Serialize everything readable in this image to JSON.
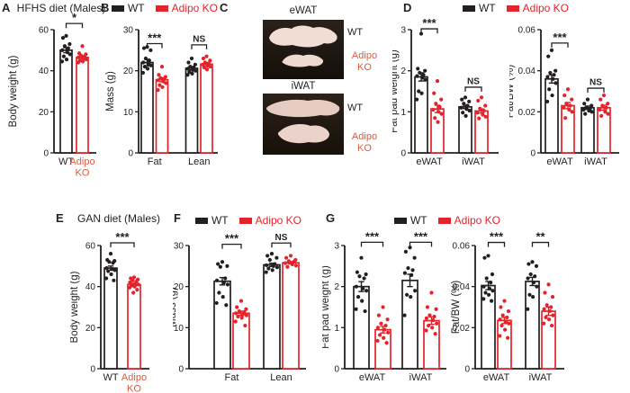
{
  "figure": {
    "panels": {
      "a": "A",
      "b": "B",
      "c": "C",
      "d": "D",
      "e": "E",
      "f": "F",
      "g": "G"
    },
    "legend": {
      "wt": "WT",
      "ko": "Adipo KO"
    },
    "colors": {
      "wt": "#231f20",
      "ko": "#e4232b",
      "ko_label": "#dd5b3c"
    },
    "panel_c": {
      "photos": [
        {
          "title": "eWAT",
          "wt_label": "WT",
          "ko_line1": "Adipo",
          "ko_line2": "KO"
        },
        {
          "title": "iWAT",
          "wt_label": "WT",
          "ko_line1": "Adipo",
          "ko_line2": "KO"
        }
      ]
    }
  },
  "chart_data": [
    {
      "id": "A",
      "type": "bar",
      "title": "HFHS diet (Males)",
      "ylabel": "Body weight (g)",
      "ylim": [
        0,
        60
      ],
      "yticks": [
        {
          "v": 0,
          "t": "0"
        },
        {
          "v": 20,
          "t": "20"
        },
        {
          "v": 40,
          "t": "40"
        },
        {
          "v": 60,
          "t": "60"
        }
      ],
      "groups": [
        {
          "category_lines": [
            "WT"
          ],
          "cat_color": "wt",
          "bars": [
            {
              "series": "WT",
              "mean": 50,
              "sem": 1.2,
              "points": [
                57,
                56,
                53,
                52,
                51,
                50,
                49,
                48,
                47,
                45.5,
                44.5
              ]
            }
          ]
        },
        {
          "category_lines": [
            "Adipo",
            "KO"
          ],
          "cat_color": "ko_label",
          "bars": [
            {
              "series": "Adipo KO",
              "mean": 46.5,
              "sem": 0.7,
              "points": [
                52,
                48.5,
                48,
                47.5,
                47,
                46.5,
                46,
                45.5,
                45,
                44.5,
                44
              ]
            }
          ]
        }
      ],
      "comparisons": [
        {
          "bar_a": 0,
          "bar_b": 1,
          "label": "*",
          "y": 63
        }
      ]
    },
    {
      "id": "B",
      "type": "bar",
      "title": "",
      "ylabel": "Mass (g)",
      "ylim": [
        0,
        30
      ],
      "yticks": [
        {
          "v": 0,
          "t": "0"
        },
        {
          "v": 10,
          "t": "10"
        },
        {
          "v": 20,
          "t": "20"
        },
        {
          "v": 30,
          "t": "30"
        }
      ],
      "groups": [
        {
          "category_lines": [
            "Fat"
          ],
          "cat_color": "wt",
          "bars": [
            {
              "series": "WT",
              "mean": 22,
              "sem": 0.8,
              "points": [
                25.8,
                25.5,
                25,
                23,
                22.5,
                22,
                21.7,
                21.3,
                21,
                20.5,
                19.5
              ]
            },
            {
              "series": "Adipo KO",
              "mean": 17.8,
              "sem": 0.5,
              "points": [
                21,
                19,
                18.5,
                18.2,
                18,
                17.7,
                17.4,
                17,
                16.5,
                16,
                15.3
              ]
            }
          ]
        },
        {
          "category_lines": [
            "Lean"
          ],
          "cat_color": "wt",
          "bars": [
            {
              "series": "WT",
              "mean": 20.6,
              "sem": 0.4,
              "points": [
                23,
                22,
                21.5,
                21,
                20.8,
                20.5,
                20.2,
                20,
                19.7,
                19.3,
                19
              ]
            },
            {
              "series": "Adipo KO",
              "mean": 21.6,
              "sem": 0.4,
              "points": [
                23.5,
                23,
                22.5,
                22,
                21.8,
                21.5,
                21.2,
                21,
                20.8,
                20.3
              ]
            }
          ]
        }
      ],
      "comparisons": [
        {
          "bar_a": 0,
          "bar_b": 1,
          "label": "***",
          "y": 26.6
        },
        {
          "bar_a": 2,
          "bar_b": 3,
          "label": "NS",
          "y": 26.3
        }
      ]
    },
    {
      "id": "D-left",
      "type": "bar",
      "title": "",
      "ylabel": "Fat pad weight (g)",
      "ylim": [
        0,
        3
      ],
      "yticks": [
        {
          "v": 0,
          "t": "0"
        },
        {
          "v": 1,
          "t": "1"
        },
        {
          "v": 2,
          "t": "2"
        },
        {
          "v": 3,
          "t": "3"
        }
      ],
      "groups": [
        {
          "category_lines": [
            "eWAT"
          ],
          "cat_color": "wt",
          "bars": [
            {
              "series": "WT",
              "mean": 1.85,
              "sem": 0.1,
              "points": [
                2.9,
                2.05,
                2.0,
                1.95,
                1.9,
                1.87,
                1.83,
                1.78,
                1.5,
                1.45,
                1.3
              ]
            },
            {
              "series": "Adipo KO",
              "mean": 1.07,
              "sem": 0.09,
              "points": [
                1.75,
                1.45,
                1.3,
                1.2,
                1.12,
                1.05,
                1.0,
                0.95,
                0.85,
                0.75
              ]
            }
          ]
        },
        {
          "category_lines": [
            "iWAT"
          ],
          "cat_color": "wt",
          "bars": [
            {
              "series": "WT",
              "mean": 1.12,
              "sem": 0.04,
              "points": [
                1.35,
                1.3,
                1.25,
                1.2,
                1.15,
                1.1,
                1.07,
                1.03,
                0.98,
                0.9
              ]
            },
            {
              "series": "Adipo KO",
              "mean": 1.02,
              "sem": 0.05,
              "points": [
                1.35,
                1.27,
                1.15,
                1.08,
                1.03,
                0.98,
                0.93,
                0.88,
                0.84
              ]
            }
          ]
        }
      ],
      "comparisons": [
        {
          "bar_a": 0,
          "bar_b": 1,
          "label": "***",
          "y": 3.02
        },
        {
          "bar_a": 2,
          "bar_b": 3,
          "label": "NS",
          "y": 1.6
        }
      ]
    },
    {
      "id": "D-right",
      "type": "bar",
      "title": "",
      "ylabel": "Fat/BW (%)",
      "ylim": [
        0,
        0.06
      ],
      "yticks": [
        {
          "v": 0,
          "t": "0"
        },
        {
          "v": 0.02,
          "t": "0.02"
        },
        {
          "v": 0.04,
          "t": "0.04"
        },
        {
          "v": 0.06,
          "t": "0.06"
        }
      ],
      "groups": [
        {
          "category_lines": [
            "eWAT"
          ],
          "cat_color": "wt",
          "bars": [
            {
              "series": "WT",
              "mean": 0.036,
              "sem": 0.002,
              "points": [
                0.05,
                0.047,
                0.04,
                0.039,
                0.038,
                0.037,
                0.036,
                0.034,
                0.031,
                0.028,
                0.025
              ]
            },
            {
              "series": "Adipo KO",
              "mean": 0.023,
              "sem": 0.0015,
              "points": [
                0.031,
                0.028,
                0.026,
                0.024,
                0.023,
                0.022,
                0.021,
                0.02,
                0.017
              ]
            }
          ]
        },
        {
          "category_lines": [
            "iWAT"
          ],
          "cat_color": "wt",
          "bars": [
            {
              "series": "WT",
              "mean": 0.022,
              "sem": 0.0008,
              "points": [
                0.026,
                0.024,
                0.023,
                0.022,
                0.0215,
                0.021,
                0.0205,
                0.02,
                0.019
              ]
            },
            {
              "series": "Adipo KO",
              "mean": 0.022,
              "sem": 0.0012,
              "points": [
                0.028,
                0.026,
                0.024,
                0.023,
                0.022,
                0.021,
                0.02,
                0.019,
                0.018
              ]
            }
          ]
        }
      ],
      "comparisons": [
        {
          "bar_a": 0,
          "bar_b": 1,
          "label": "***",
          "y": 0.0535
        },
        {
          "bar_a": 2,
          "bar_b": 3,
          "label": "NS",
          "y": 0.0315
        }
      ]
    },
    {
      "id": "E",
      "type": "bar",
      "title": "GAN diet (Males)",
      "ylabel": "Body weight (g)",
      "ylim": [
        0,
        60
      ],
      "yticks": [
        {
          "v": 0,
          "t": "0"
        },
        {
          "v": 20,
          "t": "20"
        },
        {
          "v": 40,
          "t": "40"
        },
        {
          "v": 60,
          "t": "60"
        }
      ],
      "groups": [
        {
          "category_lines": [
            "WT"
          ],
          "cat_color": "wt",
          "bars": [
            {
              "series": "WT",
              "mean": 49,
              "sem": 1.0,
              "points": [
                56,
                53,
                52.5,
                52,
                51.5,
                49,
                48.5,
                48,
                47.5,
                46,
                44,
                43
              ]
            }
          ]
        },
        {
          "category_lines": [
            "Adipo",
            "KO"
          ],
          "cat_color": "ko_label",
          "bars": [
            {
              "series": "Adipo KO",
              "mean": 41,
              "sem": 0.6,
              "points": [
                44.5,
                44,
                43.5,
                43,
                42.5,
                42,
                41.5,
                41,
                40.5,
                40,
                39.5,
                38.5,
                37
              ]
            }
          ]
        }
      ],
      "comparisons": [
        {
          "bar_a": 0,
          "bar_b": 1,
          "label": "***",
          "y": 61.3
        }
      ]
    },
    {
      "id": "F",
      "type": "bar",
      "title": "",
      "ylabel": "Mass (g)",
      "ylim": [
        0,
        30
      ],
      "yticks": [
        {
          "v": 0,
          "t": "0"
        },
        {
          "v": 10,
          "t": "10"
        },
        {
          "v": 20,
          "t": "20"
        },
        {
          "v": 30,
          "t": "30"
        }
      ],
      "groups": [
        {
          "category_lines": [
            "Fat"
          ],
          "cat_color": "wt",
          "bars": [
            {
              "series": "WT",
              "mean": 21.3,
              "sem": 0.9,
              "points": [
                26,
                25.5,
                25,
                24.8,
                22,
                21.5,
                21,
                20.5,
                18.5,
                17.5,
                16,
                15.5
              ]
            },
            {
              "series": "Adipo KO",
              "mean": 13.5,
              "sem": 0.5,
              "points": [
                16.5,
                15,
                14.5,
                14,
                13.8,
                13.5,
                13.2,
                13,
                12.7,
                12.4,
                11.5,
                10.5
              ]
            }
          ]
        },
        {
          "category_lines": [
            "Lean"
          ],
          "cat_color": "wt",
          "bars": [
            {
              "series": "WT",
              "mean": 25.3,
              "sem": 0.4,
              "points": [
                28,
                27.5,
                27,
                26.5,
                25.5,
                25.2,
                25,
                24.7,
                24.4,
                24,
                23.5
              ]
            },
            {
              "series": "Adipo KO",
              "mean": 25.8,
              "sem": 0.3,
              "points": [
                27.5,
                27,
                26.5,
                26.2,
                26,
                25.7,
                25.4,
                25.1,
                24.8
              ]
            }
          ]
        }
      ],
      "comparisons": [
        {
          "bar_a": 0,
          "bar_b": 1,
          "label": "***",
          "y": 30.3
        },
        {
          "bar_a": 2,
          "bar_b": 3,
          "label": "NS",
          "y": 30.6
        }
      ]
    },
    {
      "id": "G-left",
      "type": "bar",
      "title": "",
      "ylabel": "Fat pad weight (g)",
      "ylim": [
        0,
        3
      ],
      "yticks": [
        {
          "v": 0,
          "t": "0"
        },
        {
          "v": 1,
          "t": "1"
        },
        {
          "v": 2,
          "t": "2"
        },
        {
          "v": 3,
          "t": "3"
        }
      ],
      "groups": [
        {
          "category_lines": [
            "eWAT"
          ],
          "cat_color": "wt",
          "bars": [
            {
              "series": "WT",
              "mean": 2.0,
              "sem": 0.12,
              "points": [
                2.7,
                2.35,
                2.3,
                2.25,
                2.2,
                2.0,
                1.95,
                1.9,
                1.75,
                1.65,
                1.45,
                1.4
              ]
            },
            {
              "series": "Adipo KO",
              "mean": 0.95,
              "sem": 0.08,
              "points": [
                1.5,
                1.3,
                1.2,
                1.1,
                1.05,
                1.0,
                0.95,
                0.88,
                0.82,
                0.75,
                0.68,
                0.63
              ]
            }
          ]
        },
        {
          "category_lines": [
            "iWAT"
          ],
          "cat_color": "wt",
          "bars": [
            {
              "series": "WT",
              "mean": 2.15,
              "sem": 0.15,
              "points": [
                2.95,
                2.85,
                2.7,
                2.45,
                2.4,
                2.33,
                2.28,
                1.9,
                1.8,
                1.75,
                1.3
              ]
            },
            {
              "series": "Adipo KO",
              "mean": 1.17,
              "sem": 0.09,
              "points": [
                1.85,
                1.5,
                1.45,
                1.3,
                1.27,
                1.23,
                1.18,
                1.1,
                1.05,
                1.0,
                0.93,
                0.85
              ]
            }
          ]
        }
      ],
      "comparisons": [
        {
          "bar_a": 0,
          "bar_b": 1,
          "label": "***",
          "y": 3.08
        },
        {
          "bar_a": 2,
          "bar_b": 3,
          "label": "***",
          "y": 3.08
        }
      ]
    },
    {
      "id": "G-right",
      "type": "bar",
      "title": "",
      "ylabel": "Fat/BW (%)",
      "ylim": [
        0,
        0.06
      ],
      "yticks": [
        {
          "v": 0,
          "t": "0"
        },
        {
          "v": 0.02,
          "t": "0.02"
        },
        {
          "v": 0.04,
          "t": "0.04"
        },
        {
          "v": 0.06,
          "t": "0.06"
        }
      ],
      "groups": [
        {
          "category_lines": [
            "eWAT"
          ],
          "cat_color": "wt",
          "bars": [
            {
              "series": "WT",
              "mean": 0.0405,
              "sem": 0.002,
              "points": [
                0.055,
                0.054,
                0.046,
                0.044,
                0.042,
                0.04,
                0.039,
                0.038,
                0.037,
                0.036,
                0.034,
                0.033
              ]
            },
            {
              "series": "Adipo KO",
              "mean": 0.0235,
              "sem": 0.0015,
              "points": [
                0.033,
                0.03,
                0.028,
                0.026,
                0.025,
                0.024,
                0.023,
                0.022,
                0.021,
                0.019,
                0.016,
                0.015
              ]
            }
          ]
        },
        {
          "category_lines": [
            "iWAT"
          ],
          "cat_color": "wt",
          "bars": [
            {
              "series": "WT",
              "mean": 0.0425,
              "sem": 0.002,
              "points": [
                0.052,
                0.051,
                0.05,
                0.046,
                0.045,
                0.044,
                0.042,
                0.04,
                0.036,
                0.035,
                0.029
              ]
            },
            {
              "series": "Adipo KO",
              "mean": 0.028,
              "sem": 0.002,
              "points": [
                0.041,
                0.037,
                0.035,
                0.031,
                0.03,
                0.029,
                0.028,
                0.026,
                0.025,
                0.024,
                0.022,
                0.021
              ]
            }
          ]
        }
      ],
      "comparisons": [
        {
          "bar_a": 0,
          "bar_b": 1,
          "label": "***",
          "y": 0.0615
        },
        {
          "bar_a": 2,
          "bar_b": 3,
          "label": "**",
          "y": 0.0615
        }
      ]
    }
  ]
}
